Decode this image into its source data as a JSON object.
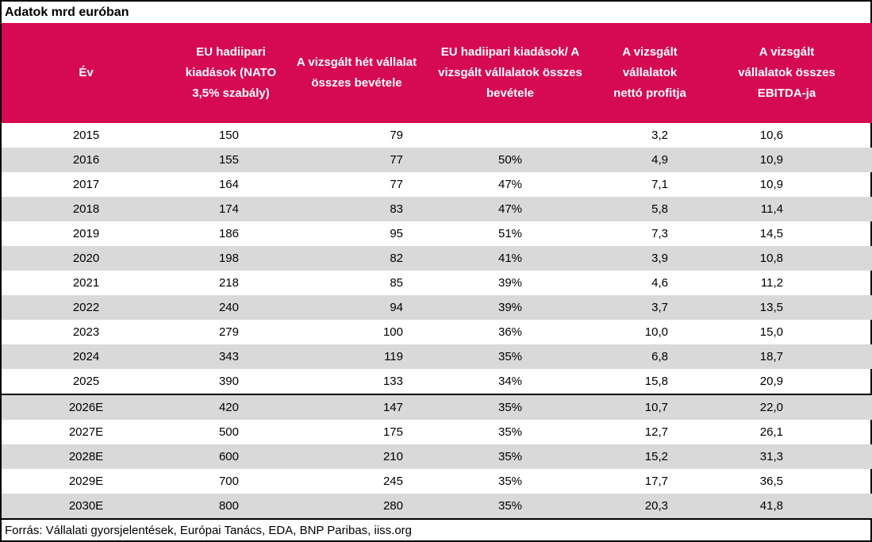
{
  "title": "Adatok mrd euróban",
  "source_note": "Forrás: Vállalati gyorsjelentések, Európai Tanács, EDA, BNP Paribas, iiss.org",
  "colors": {
    "header_bg": "#D60A52",
    "header_text": "#FFFFFF",
    "alt_row_bg": "#D9D9D9",
    "border": "#000000"
  },
  "chart_data": {
    "type": "table",
    "columns": [
      "Év",
      "EU hadiipari kiadások (NATO 3,5% szabály)",
      "A vizsgált hét vállalat összes bevétele",
      "EU hadiipari kiadások/ A vizsgált vállalatok összes bevétele",
      "A vizsgált vállalatok nettó profitja",
      "A vizsgált vállalatok összes EBITDA-ja"
    ],
    "rows": [
      [
        "2015",
        "150",
        "79",
        "",
        "3,2",
        "10,6"
      ],
      [
        "2016",
        "155",
        "77",
        "50%",
        "4,9",
        "10,9"
      ],
      [
        "2017",
        "164",
        "77",
        "47%",
        "7,1",
        "10,9"
      ],
      [
        "2018",
        "174",
        "83",
        "47%",
        "5,8",
        "11,4"
      ],
      [
        "2019",
        "186",
        "95",
        "51%",
        "7,3",
        "14,5"
      ],
      [
        "2020",
        "198",
        "82",
        "41%",
        "3,9",
        "10,8"
      ],
      [
        "2021",
        "218",
        "85",
        "39%",
        "4,6",
        "11,2"
      ],
      [
        "2022",
        "240",
        "94",
        "39%",
        "3,7",
        "13,5"
      ],
      [
        "2023",
        "279",
        "100",
        "36%",
        "10,0",
        "15,0"
      ],
      [
        "2024",
        "343",
        "119",
        "35%",
        "6,8",
        "18,7"
      ],
      [
        "2025",
        "390",
        "133",
        "34%",
        "15,8",
        "20,9"
      ],
      [
        "2026E",
        "420",
        "147",
        "35%",
        "10,7",
        "22,0"
      ],
      [
        "2027E",
        "500",
        "175",
        "35%",
        "12,7",
        "26,1"
      ],
      [
        "2028E",
        "600",
        "210",
        "35%",
        "15,2",
        "31,3"
      ],
      [
        "2029E",
        "700",
        "245",
        "35%",
        "17,7",
        "36,5"
      ],
      [
        "2030E",
        "800",
        "280",
        "35%",
        "20,3",
        "41,8"
      ]
    ]
  }
}
